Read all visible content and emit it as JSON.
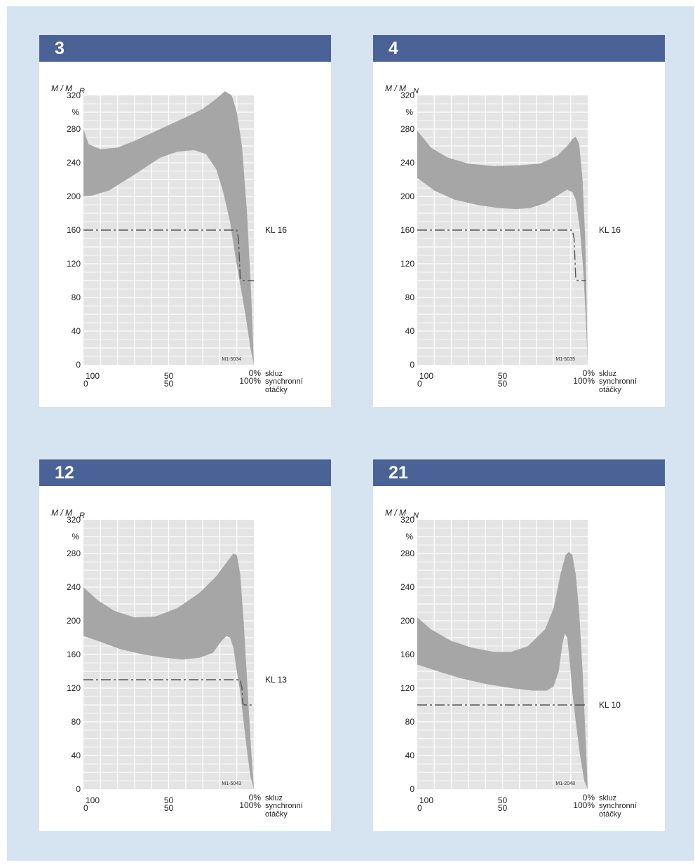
{
  "colors": {
    "frame": "#d6e3f1",
    "header": "#4a6295",
    "plot_bg": "#e4e4e4",
    "grid": "#ffffff",
    "band": "#a6a6a6",
    "line": "#555555"
  },
  "chart_data": [
    {
      "panel": "3",
      "type": "area",
      "ylabel_main": "M / M",
      "ylabel_sub": "R",
      "y_unit": "%",
      "yticks": [
        0,
        40,
        80,
        120,
        160,
        200,
        240,
        280,
        320
      ],
      "ylim": [
        0,
        320
      ],
      "x_top_labels": [
        "100",
        "50",
        "0%"
      ],
      "x_bottom_labels": [
        "0",
        "50",
        "100%"
      ],
      "x_axis_label_top": "skluz",
      "x_axis_label_bottom_1": "synchronní",
      "x_axis_label_bottom_2": "otáčky",
      "grid": true,
      "code": "M1-5034",
      "band_upper": [
        [
          0,
          280
        ],
        [
          3,
          262
        ],
        [
          10,
          256
        ],
        [
          20,
          258
        ],
        [
          30,
          266
        ],
        [
          45,
          280
        ],
        [
          60,
          294
        ],
        [
          70,
          304
        ],
        [
          78,
          316
        ],
        [
          83,
          325
        ],
        [
          87,
          320
        ],
        [
          90,
          300
        ],
        [
          93,
          260
        ],
        [
          96,
          180
        ],
        [
          98.5,
          80
        ],
        [
          100,
          0
        ]
      ],
      "band_lower": [
        [
          0,
          200
        ],
        [
          5,
          201
        ],
        [
          15,
          207
        ],
        [
          30,
          226
        ],
        [
          45,
          246
        ],
        [
          55,
          253
        ],
        [
          65,
          255
        ],
        [
          72,
          250
        ],
        [
          78,
          232
        ],
        [
          82,
          205
        ],
        [
          86,
          170
        ],
        [
          89,
          130
        ],
        [
          92,
          95
        ],
        [
          95,
          60
        ],
        [
          98,
          20
        ],
        [
          100,
          0
        ]
      ],
      "kl_label": "KL 16",
      "kl_line": [
        [
          0,
          160
        ],
        [
          90,
          160
        ],
        [
          91,
          150
        ],
        [
          92,
          102
        ],
        [
          93,
          100
        ],
        [
          100,
          100
        ]
      ]
    },
    {
      "panel": "4",
      "type": "area",
      "ylabel_main": "M / M",
      "ylabel_sub": "N",
      "y_unit": "%",
      "yticks": [
        0,
        40,
        80,
        120,
        160,
        200,
        240,
        280,
        320
      ],
      "ylim": [
        0,
        320
      ],
      "x_top_labels": [
        "100",
        "50",
        "0%"
      ],
      "x_bottom_labels": [
        "0",
        "50",
        "100%"
      ],
      "x_axis_label_top": "skluz",
      "x_axis_label_bottom_1": "synchronní",
      "x_axis_label_bottom_2": "otáčky",
      "grid": true,
      "code": "M1-5035",
      "band_upper": [
        [
          0,
          278
        ],
        [
          8,
          258
        ],
        [
          18,
          246
        ],
        [
          30,
          239
        ],
        [
          45,
          236
        ],
        [
          60,
          237
        ],
        [
          72,
          239
        ],
        [
          82,
          248
        ],
        [
          88,
          260
        ],
        [
          91,
          268
        ],
        [
          93,
          271
        ],
        [
          95,
          262
        ],
        [
          97,
          220
        ],
        [
          98.5,
          150
        ],
        [
          99.3,
          80
        ],
        [
          100,
          0
        ]
      ],
      "band_lower": [
        [
          0,
          222
        ],
        [
          10,
          207
        ],
        [
          22,
          196
        ],
        [
          35,
          190
        ],
        [
          48,
          186
        ],
        [
          58,
          185
        ],
        [
          66,
          186
        ],
        [
          75,
          192
        ],
        [
          83,
          202
        ],
        [
          88,
          208
        ],
        [
          91,
          205
        ],
        [
          93,
          196
        ],
        [
          95.5,
          160
        ],
        [
          97.5,
          110
        ],
        [
          99,
          50
        ],
        [
          100,
          0
        ]
      ],
      "kl_label": "KL 16",
      "kl_line": [
        [
          0,
          160
        ],
        [
          91,
          160
        ],
        [
          92,
          150
        ],
        [
          93,
          102
        ],
        [
          94,
          100
        ],
        [
          99,
          100
        ]
      ]
    },
    {
      "panel": "12",
      "type": "area",
      "ylabel_main": "M / M",
      "ylabel_sub": "R",
      "y_unit": "%",
      "yticks": [
        0,
        40,
        80,
        120,
        160,
        200,
        240,
        280,
        320
      ],
      "ylim": [
        0,
        320
      ],
      "x_top_labels": [
        "100",
        "50",
        "0%"
      ],
      "x_bottom_labels": [
        "0",
        "50",
        "100%"
      ],
      "x_axis_label_top": "skluz",
      "x_axis_label_bottom_1": "synchronní",
      "x_axis_label_bottom_2": "otáčky",
      "grid": true,
      "code": "M1-5043",
      "band_upper": [
        [
          0,
          240
        ],
        [
          8,
          225
        ],
        [
          18,
          212
        ],
        [
          30,
          204
        ],
        [
          42,
          205
        ],
        [
          55,
          215
        ],
        [
          68,
          233
        ],
        [
          78,
          253
        ],
        [
          85,
          272
        ],
        [
          88,
          280
        ],
        [
          90,
          278
        ],
        [
          92,
          255
        ],
        [
          94,
          200
        ],
        [
          96,
          130
        ],
        [
          98,
          60
        ],
        [
          100,
          0
        ]
      ],
      "band_lower": [
        [
          0,
          182
        ],
        [
          10,
          175
        ],
        [
          22,
          166
        ],
        [
          35,
          160
        ],
        [
          48,
          156
        ],
        [
          58,
          154
        ],
        [
          68,
          156
        ],
        [
          76,
          162
        ],
        [
          81,
          176
        ],
        [
          84,
          182
        ],
        [
          86,
          180
        ],
        [
          88,
          168
        ],
        [
          90,
          140
        ],
        [
          92,
          115
        ],
        [
          94,
          80
        ],
        [
          96,
          45
        ],
        [
          98,
          15
        ],
        [
          100,
          0
        ]
      ],
      "kl_label": "KL 13",
      "kl_line": [
        [
          0,
          130
        ],
        [
          92,
          130
        ],
        [
          93,
          120
        ],
        [
          93.5,
          102
        ],
        [
          94.5,
          100
        ],
        [
          100,
          100
        ]
      ]
    },
    {
      "panel": "21",
      "type": "area",
      "ylabel_main": "M / M",
      "ylabel_sub": "N",
      "y_unit": "%",
      "yticks": [
        0,
        40,
        80,
        120,
        160,
        200,
        240,
        280,
        320
      ],
      "ylim": [
        0,
        320
      ],
      "x_top_labels": [
        "100",
        "50",
        "0%"
      ],
      "x_bottom_labels": [
        "0",
        "50",
        "100%"
      ],
      "x_axis_label_top": "skluz",
      "x_axis_label_bottom_1": "synchronní",
      "x_axis_label_bottom_2": "otáčky",
      "grid": true,
      "code": "M1-2048",
      "band_upper": [
        [
          0,
          204
        ],
        [
          8,
          190
        ],
        [
          20,
          176
        ],
        [
          32,
          168
        ],
        [
          45,
          163
        ],
        [
          55,
          163
        ],
        [
          65,
          170
        ],
        [
          75,
          190
        ],
        [
          80,
          215
        ],
        [
          84,
          255
        ],
        [
          87,
          278
        ],
        [
          89,
          282
        ],
        [
          91,
          278
        ],
        [
          93,
          255
        ],
        [
          95,
          210
        ],
        [
          97,
          140
        ],
        [
          99,
          50
        ],
        [
          100,
          0
        ]
      ],
      "band_lower": [
        [
          0,
          148
        ],
        [
          12,
          140
        ],
        [
          25,
          132
        ],
        [
          40,
          125
        ],
        [
          55,
          120
        ],
        [
          68,
          117
        ],
        [
          76,
          117
        ],
        [
          80,
          122
        ],
        [
          83,
          140
        ],
        [
          85,
          170
        ],
        [
          86.5,
          185
        ],
        [
          88,
          180
        ],
        [
          89.5,
          150
        ],
        [
          91,
          115
        ],
        [
          93,
          80
        ],
        [
          95.5,
          40
        ],
        [
          98,
          10
        ],
        [
          100,
          0
        ]
      ],
      "kl_label": "KL 10",
      "kl_line": [
        [
          0,
          100
        ],
        [
          100,
          100
        ]
      ]
    }
  ]
}
